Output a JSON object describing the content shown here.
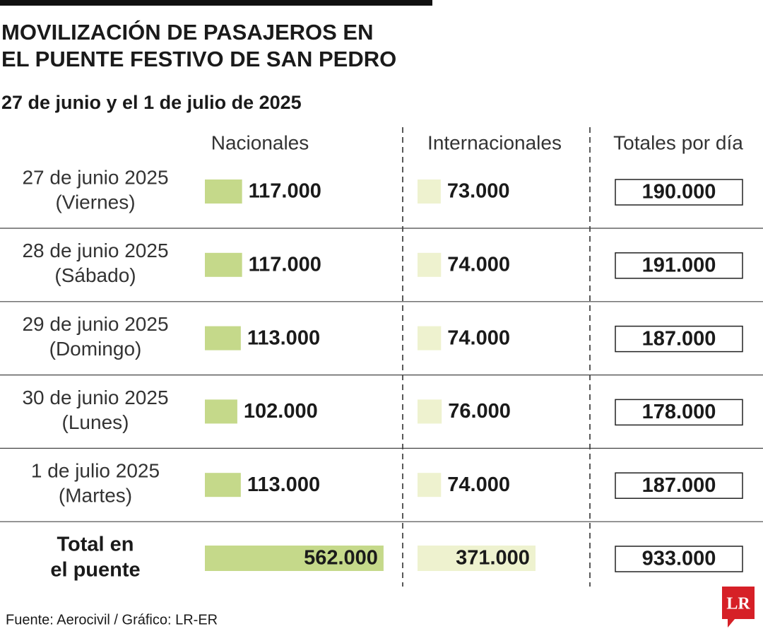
{
  "chart_data": {
    "type": "bar",
    "title_lines": [
      "MOVILIZACIÓN DE PASAJEROS EN",
      "EL PUENTE FESTIVO DE SAN PEDRO"
    ],
    "subtitle": "27 de junio y el 1 de julio de 2025",
    "categories": [
      [
        "27 de junio 2025",
        "(Viernes)"
      ],
      [
        "28 de junio 2025",
        "(Sábado)"
      ],
      [
        "29 de junio 2025",
        "(Domingo)"
      ],
      [
        "30 de junio 2025",
        "(Lunes)"
      ],
      [
        "1 de julio 2025",
        "(Martes)"
      ]
    ],
    "series": [
      {
        "name": "Nacionales",
        "color": "#c5d98a",
        "values": [
          117000,
          117000,
          113000,
          102000,
          113000
        ],
        "value_labels": [
          "117.000",
          "117.000",
          "113.000",
          "102.000",
          "113.000"
        ]
      },
      {
        "name": "Internacionales",
        "color": "#eef2cf",
        "values": [
          73000,
          74000,
          74000,
          76000,
          74000
        ],
        "value_labels": [
          "73.000",
          "74.000",
          "74.000",
          "76.000",
          "74.000"
        ]
      }
    ],
    "totals": {
      "name": "Totales por día",
      "values": [
        190000,
        191000,
        187000,
        178000,
        187000
      ],
      "value_labels": [
        "190.000",
        "191.000",
        "187.000",
        "178.000",
        "187.000"
      ]
    },
    "total_row": {
      "label_lines": [
        "Total en",
        "el puente"
      ],
      "values": [
        562000,
        371000,
        933000
      ],
      "value_labels": [
        "562.000",
        "371.000",
        "933.000"
      ]
    },
    "source": "Fuente: Aerocivil / Gráfico: LR-ER",
    "logo": "LR"
  }
}
